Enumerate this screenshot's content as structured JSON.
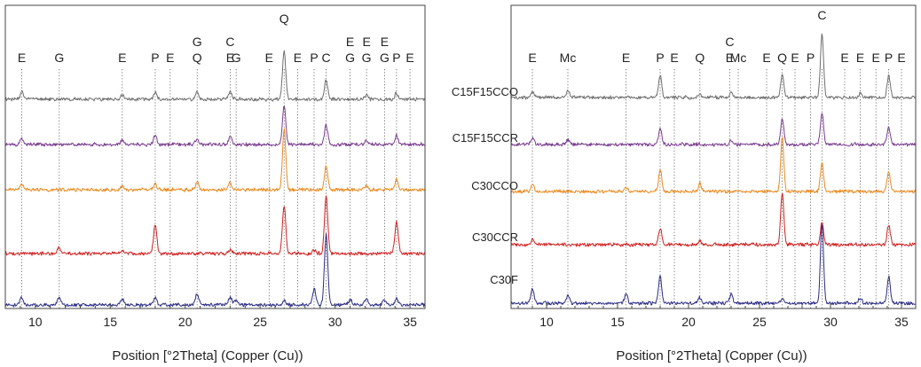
{
  "chart_data": [
    {
      "type": "line",
      "xlabel": "Position [°2Theta] (Copper (Cu))",
      "ylabel": "",
      "xlim": [
        8,
        36
      ],
      "xticks": [
        10,
        15,
        20,
        25,
        30,
        35
      ],
      "grid": false,
      "peak_labels": [
        {
          "x": 9.1,
          "text": "E"
        },
        {
          "x": 11.6,
          "text": "G"
        },
        {
          "x": 15.8,
          "text": "E"
        },
        {
          "x": 18.0,
          "text": "P"
        },
        {
          "x": 19.0,
          "text": "E"
        },
        {
          "x": 20.8,
          "text": "G"
        },
        {
          "x": 20.8,
          "text": "Q"
        },
        {
          "x": 23.0,
          "text": "C"
        },
        {
          "x": 23.0,
          "text": "E"
        },
        {
          "x": 23.4,
          "text": "G"
        },
        {
          "x": 25.6,
          "text": "E"
        },
        {
          "x": 26.6,
          "text": "Q"
        },
        {
          "x": 27.5,
          "text": "E"
        },
        {
          "x": 28.6,
          "text": "P"
        },
        {
          "x": 29.4,
          "text": "C"
        },
        {
          "x": 31.0,
          "text": "E"
        },
        {
          "x": 31.0,
          "text": "G"
        },
        {
          "x": 32.1,
          "text": "E"
        },
        {
          "x": 32.1,
          "text": "G"
        },
        {
          "x": 33.3,
          "text": "E"
        },
        {
          "x": 33.3,
          "text": "G"
        },
        {
          "x": 34.1,
          "text": "P"
        },
        {
          "x": 35.0,
          "text": "E"
        }
      ],
      "series": [
        {
          "name": "C15F15CCO",
          "color": "#6e6e6e",
          "peaks": [
            [
              9.1,
              0.12
            ],
            [
              15.8,
              0.06
            ],
            [
              18.0,
              0.12
            ],
            [
              20.8,
              0.11
            ],
            [
              23.0,
              0.12
            ],
            [
              26.6,
              0.75
            ],
            [
              29.4,
              0.3
            ],
            [
              34.1,
              0.1
            ],
            [
              32.1,
              0.06
            ]
          ]
        },
        {
          "name": "C15F15CCR",
          "color": "#7a3d8f",
          "peaks": [
            [
              9.1,
              0.1
            ],
            [
              15.8,
              0.07
            ],
            [
              18.0,
              0.14
            ],
            [
              20.8,
              0.09
            ],
            [
              23.0,
              0.12
            ],
            [
              26.6,
              0.62
            ],
            [
              29.4,
              0.3
            ],
            [
              34.1,
              0.14
            ],
            [
              32.1,
              0.07
            ]
          ]
        },
        {
          "name": "C30CCO",
          "color": "#ea8a1f",
          "peaks": [
            [
              9.1,
              0.08
            ],
            [
              15.8,
              0.06
            ],
            [
              18.0,
              0.1
            ],
            [
              20.8,
              0.12
            ],
            [
              23.0,
              0.1
            ],
            [
              26.6,
              0.95
            ],
            [
              29.4,
              0.38
            ],
            [
              34.1,
              0.17
            ],
            [
              32.1,
              0.06
            ]
          ]
        },
        {
          "name": "C30CCR",
          "color": "#d02020",
          "peaks": [
            [
              11.6,
              0.1
            ],
            [
              15.8,
              0.05
            ],
            [
              18.0,
              0.44
            ],
            [
              23.0,
              0.07
            ],
            [
              26.6,
              0.76
            ],
            [
              29.4,
              0.9
            ],
            [
              34.1,
              0.5
            ],
            [
              28.6,
              0.06
            ]
          ]
        },
        {
          "name": "C30F",
          "color": "#2b2b86",
          "peaks": [
            [
              9.1,
              0.12
            ],
            [
              11.6,
              0.12
            ],
            [
              15.8,
              0.1
            ],
            [
              18.0,
              0.12
            ],
            [
              20.8,
              0.18
            ],
            [
              23.0,
              0.12
            ],
            [
              23.4,
              0.08
            ],
            [
              26.6,
              0.07
            ],
            [
              29.4,
              1.1
            ],
            [
              28.6,
              0.25
            ],
            [
              31.0,
              0.08
            ],
            [
              32.1,
              0.1
            ],
            [
              33.3,
              0.08
            ],
            [
              34.1,
              0.1
            ]
          ]
        }
      ]
    },
    {
      "type": "line",
      "xlabel": "Position [°2Theta] (Copper (Cu))",
      "ylabel": "",
      "xlim": [
        7.5,
        36
      ],
      "xticks": [
        10,
        15,
        20,
        25,
        30,
        35
      ],
      "grid": false,
      "peak_labels": [
        {
          "x": 9.0,
          "text": "E"
        },
        {
          "x": 11.5,
          "text": "Mc"
        },
        {
          "x": 15.6,
          "text": "E"
        },
        {
          "x": 18.0,
          "text": "P"
        },
        {
          "x": 19.0,
          "text": "E"
        },
        {
          "x": 20.8,
          "text": "Q"
        },
        {
          "x": 22.9,
          "text": "C"
        },
        {
          "x": 22.9,
          "text": "E"
        },
        {
          "x": 23.5,
          "text": "Mc"
        },
        {
          "x": 25.5,
          "text": "E"
        },
        {
          "x": 26.6,
          "text": "Q"
        },
        {
          "x": 27.5,
          "text": "E"
        },
        {
          "x": 28.6,
          "text": "P"
        },
        {
          "x": 29.4,
          "text": "C"
        },
        {
          "x": 31.0,
          "text": "E"
        },
        {
          "x": 32.1,
          "text": "E"
        },
        {
          "x": 33.2,
          "text": "E"
        },
        {
          "x": 34.1,
          "text": "P"
        },
        {
          "x": 35.0,
          "text": "E"
        }
      ],
      "series": [
        {
          "name": "",
          "color": "#6e6e6e",
          "peaks": [
            [
              9.0,
              0.1
            ],
            [
              11.5,
              0.1
            ],
            [
              18.0,
              0.35
            ],
            [
              20.8,
              0.05
            ],
            [
              23.0,
              0.08
            ],
            [
              26.6,
              0.35
            ],
            [
              29.4,
              1.0
            ],
            [
              34.1,
              0.35
            ],
            [
              32.1,
              0.06
            ]
          ]
        },
        {
          "name": "",
          "color": "#7a3d8f",
          "peaks": [
            [
              9.0,
              0.1
            ],
            [
              11.5,
              0.08
            ],
            [
              18.0,
              0.25
            ],
            [
              23.0,
              0.06
            ],
            [
              26.6,
              0.4
            ],
            [
              29.4,
              0.5
            ],
            [
              34.1,
              0.28
            ]
          ]
        },
        {
          "name": "",
          "color": "#ea8a1f",
          "peaks": [
            [
              9.0,
              0.12
            ],
            [
              15.6,
              0.06
            ],
            [
              18.0,
              0.35
            ],
            [
              20.8,
              0.12
            ],
            [
              26.6,
              0.85
            ],
            [
              29.4,
              0.45
            ],
            [
              34.1,
              0.3
            ]
          ]
        },
        {
          "name": "",
          "color": "#d02020",
          "peaks": [
            [
              9.0,
              0.08
            ],
            [
              18.0,
              0.25
            ],
            [
              20.8,
              0.06
            ],
            [
              26.6,
              0.82
            ],
            [
              29.4,
              0.35
            ],
            [
              34.1,
              0.3
            ]
          ]
        },
        {
          "name": "",
          "color": "#2b2b86",
          "peaks": [
            [
              9.0,
              0.22
            ],
            [
              11.5,
              0.12
            ],
            [
              15.6,
              0.14
            ],
            [
              18.0,
              0.42
            ],
            [
              20.8,
              0.08
            ],
            [
              23.0,
              0.14
            ],
            [
              26.6,
              0.06
            ],
            [
              29.4,
              1.25
            ],
            [
              32.1,
              0.08
            ],
            [
              34.1,
              0.42
            ]
          ]
        }
      ]
    }
  ]
}
